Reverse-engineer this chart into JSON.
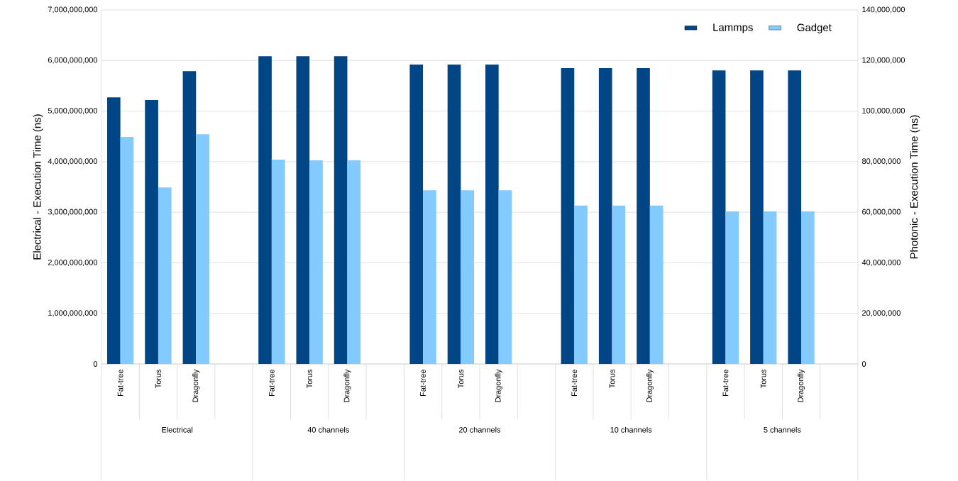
{
  "chart_data": {
    "type": "bar",
    "categories": [
      "Fat-tree",
      "Torus",
      "Dragonfly",
      null,
      "Fat-tree",
      "Torus",
      "Dragonfly",
      null,
      "Fat-tree",
      "Torus",
      "Dragonfly",
      null,
      "Fat-tree",
      "Torus",
      "Dragonfly",
      null,
      "Fat-tree",
      "Torus",
      "Dragonfly",
      null
    ],
    "annotations": [
      "Electrical",
      "40 channels",
      "20 channels",
      "10 channels",
      "5 channels"
    ],
    "series": [
      {
        "name": "Lammps",
        "color": "#004586",
        "values": [
          5270000000,
          5220000000,
          5790000000,
          null,
          null,
          null,
          null,
          null,
          null,
          null,
          null,
          null,
          null,
          null,
          null,
          null,
          null,
          null,
          null,
          null
        ]
      },
      {
        "name": "Gadget",
        "color": "#83caff",
        "values": [
          4490000000,
          3490000000,
          4540000000,
          null,
          null,
          null,
          null,
          null,
          null,
          null,
          null,
          null,
          null,
          null,
          null,
          null,
          null,
          null,
          null,
          null
        ]
      },
      {
        "color": "#004586",
        "axis": "y2",
        "values": [
          null,
          null,
          null,
          null,
          121700000,
          121700000,
          121700000,
          null,
          118400000,
          118400000,
          118400000,
          null,
          117000000,
          117000000,
          117000000,
          null,
          116100000,
          116100000,
          116100000,
          null
        ]
      },
      {
        "color": "#83caff",
        "axis": "y2",
        "values": [
          null,
          null,
          null,
          null,
          80800000,
          80500000,
          80500000,
          null,
          68700000,
          68700000,
          68700000,
          null,
          62600000,
          62600000,
          62600000,
          null,
          60300000,
          60300000,
          60300000,
          null
        ]
      }
    ],
    "ylabel": "Electrical - Execution Time (ns)",
    "y2label": "Photonic - Execution Time (ns)",
    "ylim": [
      0,
      7000000000
    ],
    "yticks": [
      {
        "value": 0,
        "label": "0"
      },
      {
        "value": 1000000000,
        "label": "1,000,000,000"
      },
      {
        "value": 2000000000,
        "label": "2,000,000,000"
      },
      {
        "value": 3000000000,
        "label": "3,000,000,000"
      },
      {
        "value": 4000000000,
        "label": "4,000,000,000"
      },
      {
        "value": 5000000000,
        "label": "5,000,000,000"
      },
      {
        "value": 6000000000,
        "label": "6,000,000,000"
      },
      {
        "value": 7000000000,
        "label": "7,000,000,000"
      }
    ],
    "y2lim": [
      0,
      140000000
    ],
    "y2ticks": [
      {
        "value": 0,
        "label": "0"
      },
      {
        "value": 20000000,
        "label": "20,000,000"
      },
      {
        "value": 40000000,
        "label": "40,000,000"
      },
      {
        "value": 60000000,
        "label": "60,000,000"
      },
      {
        "value": 80000000,
        "label": "80,000,000"
      },
      {
        "value": 100000000,
        "label": "100,000,000"
      },
      {
        "value": 120000000,
        "label": "120,000,000"
      },
      {
        "value": 140000000,
        "label": "140,000,000"
      }
    ],
    "grid": "y",
    "legend": "top right"
  }
}
